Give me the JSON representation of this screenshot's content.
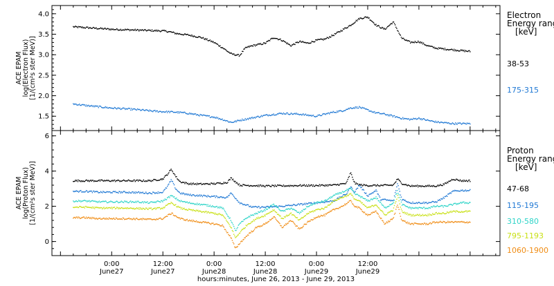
{
  "chart_data": [
    {
      "type": "scatter",
      "panel": "electron",
      "ylabel_lines": [
        "ACE EPAM",
        "log(Electron Flux)",
        "[1/(cm²s ster MeV)]"
      ],
      "ylim": [
        1.15,
        4.2
      ],
      "yticks": [
        1.5,
        2.0,
        2.5,
        3.0,
        3.5,
        4.0
      ],
      "ytick_labels": [
        "1.5",
        "2.0",
        "2.5",
        "3.0",
        "3.5",
        "4.0"
      ],
      "legend_title_lines": [
        "Electron",
        "Energy range",
        "[keV]"
      ],
      "series": [
        {
          "name": "38-53",
          "color": "#000000",
          "x": [
            -9,
            -6,
            -3,
            0,
            3,
            6,
            9,
            12,
            13,
            14,
            15,
            18,
            21,
            24,
            26,
            28,
            29,
            30,
            31,
            31.5,
            33,
            36,
            38,
            40,
            42,
            44,
            46,
            48,
            50,
            52,
            54,
            56,
            58,
            60,
            62,
            64,
            66,
            68,
            70,
            72,
            74,
            76,
            78,
            80,
            82,
            84
          ],
          "y": [
            3.68,
            3.66,
            3.64,
            3.62,
            3.61,
            3.6,
            3.59,
            3.58,
            3.57,
            3.55,
            3.52,
            3.48,
            3.42,
            3.3,
            3.17,
            3.02,
            3.0,
            2.98,
            3.12,
            3.17,
            3.22,
            3.28,
            3.42,
            3.35,
            3.22,
            3.32,
            3.28,
            3.35,
            3.38,
            3.48,
            3.6,
            3.72,
            3.88,
            3.92,
            3.72,
            3.62,
            3.8,
            3.4,
            3.3,
            3.32,
            3.22,
            3.16,
            3.14,
            3.12,
            3.1,
            3.08
          ]
        },
        {
          "name": "175-315",
          "color": "#1f78d4",
          "x": [
            -9,
            -6,
            -3,
            0,
            3,
            6,
            9,
            12,
            15,
            18,
            21,
            24,
            26,
            28,
            29,
            30,
            33,
            36,
            40,
            44,
            48,
            50,
            52,
            54,
            56,
            58,
            60,
            62,
            64,
            66,
            68,
            70,
            72,
            74,
            76,
            78,
            80,
            82,
            84
          ],
          "y": [
            1.8,
            1.76,
            1.73,
            1.7,
            1.68,
            1.66,
            1.63,
            1.61,
            1.6,
            1.57,
            1.52,
            1.48,
            1.42,
            1.35,
            1.37,
            1.4,
            1.46,
            1.52,
            1.57,
            1.55,
            1.5,
            1.55,
            1.6,
            1.63,
            1.7,
            1.72,
            1.65,
            1.58,
            1.55,
            1.5,
            1.45,
            1.42,
            1.45,
            1.4,
            1.36,
            1.34,
            1.32,
            1.32,
            1.32
          ]
        }
      ]
    },
    {
      "type": "scatter",
      "panel": "proton",
      "ylabel_lines": [
        "ACE EPAM",
        "log(Proton Flux)",
        "[1/(cm²s ster MeV)]"
      ],
      "ylim": [
        -0.8,
        6.3
      ],
      "yticks": [
        0,
        2,
        4,
        6
      ],
      "ytick_labels": [
        "0",
        "2",
        "4",
        "6"
      ],
      "legend_title_lines": [
        "Proton",
        "Energy range",
        "[keV]"
      ],
      "series": [
        {
          "name": "47-68",
          "color": "#000000",
          "x": [
            -9,
            -6,
            -3,
            0,
            3,
            6,
            9,
            12,
            13,
            14,
            15,
            16,
            18,
            21,
            24,
            27,
            28,
            30,
            33,
            36,
            40,
            44,
            48,
            52,
            55,
            56,
            57,
            58,
            60,
            63,
            66,
            67,
            68,
            70,
            72,
            74,
            76,
            78,
            80,
            82,
            84
          ],
          "y": [
            3.45,
            3.45,
            3.45,
            3.45,
            3.45,
            3.45,
            3.45,
            3.55,
            3.8,
            4.1,
            3.7,
            3.4,
            3.28,
            3.26,
            3.28,
            3.35,
            3.6,
            3.2,
            3.18,
            3.15,
            3.16,
            3.18,
            3.18,
            3.2,
            3.3,
            3.9,
            3.3,
            3.22,
            3.18,
            3.18,
            3.2,
            3.55,
            3.3,
            3.15,
            3.15,
            3.15,
            3.15,
            3.25,
            3.55,
            3.45,
            3.45
          ]
        },
        {
          "name": "115-195",
          "color": "#1f78d4",
          "x": [
            -9,
            -6,
            -3,
            0,
            3,
            6,
            9,
            12,
            13,
            14,
            15,
            16,
            18,
            21,
            24,
            27,
            28,
            30,
            33,
            36,
            40,
            44,
            48,
            52,
            55,
            56,
            57,
            58,
            60,
            62,
            63,
            66,
            67,
            68,
            70,
            72,
            74,
            76,
            78,
            80,
            82,
            84
          ],
          "y": [
            2.85,
            2.85,
            2.8,
            2.8,
            2.8,
            2.78,
            2.75,
            2.8,
            3.1,
            3.5,
            3.0,
            2.75,
            2.65,
            2.6,
            2.55,
            2.5,
            2.75,
            2.2,
            1.95,
            1.95,
            2.0,
            2.1,
            2.2,
            2.3,
            2.7,
            3.1,
            2.8,
            3.2,
            2.6,
            2.9,
            2.4,
            2.3,
            3.3,
            2.4,
            2.2,
            2.2,
            2.2,
            2.25,
            2.5,
            2.85,
            2.9,
            2.9
          ]
        },
        {
          "name": "310-580",
          "color": "#2ed4c8",
          "x": [
            -9,
            -6,
            -3,
            0,
            3,
            6,
            9,
            12,
            14,
            16,
            18,
            21,
            24,
            26,
            28,
            29,
            30,
            32,
            34,
            36,
            38,
            40,
            42,
            44,
            46,
            48,
            50,
            52,
            54,
            56,
            57,
            58,
            60,
            62,
            64,
            66,
            67,
            68,
            70,
            72,
            74,
            76,
            78,
            80,
            82,
            84
          ],
          "y": [
            2.3,
            2.3,
            2.25,
            2.25,
            2.25,
            2.25,
            2.2,
            2.3,
            2.6,
            2.3,
            2.2,
            2.1,
            2.0,
            1.9,
            1.2,
            0.6,
            1.0,
            1.4,
            1.6,
            1.8,
            2.1,
            1.7,
            1.9,
            1.6,
            2.0,
            2.2,
            2.3,
            2.6,
            2.8,
            3.0,
            2.7,
            2.6,
            2.3,
            2.5,
            1.9,
            2.2,
            2.9,
            2.1,
            1.9,
            1.9,
            1.9,
            2.0,
            2.0,
            2.1,
            2.2,
            2.2
          ]
        },
        {
          "name": "795-1193",
          "color": "#c8e014",
          "x": [
            -9,
            -6,
            -3,
            0,
            3,
            6,
            9,
            12,
            14,
            16,
            18,
            21,
            24,
            26,
            28,
            29,
            30,
            32,
            34,
            36,
            38,
            40,
            42,
            44,
            46,
            48,
            50,
            52,
            54,
            56,
            57,
            58,
            60,
            62,
            64,
            66,
            67,
            68,
            70,
            72,
            74,
            76,
            78,
            80,
            82,
            84
          ],
          "y": [
            1.95,
            1.95,
            1.9,
            1.9,
            1.9,
            1.88,
            1.85,
            1.9,
            2.2,
            1.9,
            1.8,
            1.7,
            1.6,
            1.5,
            0.8,
            0.2,
            0.5,
            1.0,
            1.3,
            1.5,
            1.8,
            1.3,
            1.6,
            1.2,
            1.6,
            1.8,
            1.9,
            2.3,
            2.5,
            2.7,
            2.4,
            2.3,
            1.9,
            2.1,
            1.5,
            1.8,
            2.6,
            1.7,
            1.5,
            1.5,
            1.5,
            1.6,
            1.6,
            1.7,
            1.7,
            1.7
          ]
        },
        {
          "name": "1060-1900",
          "color": "#f08c14",
          "x": [
            -9,
            -6,
            -3,
            0,
            3,
            6,
            9,
            12,
            14,
            16,
            18,
            21,
            24,
            26,
            28,
            29,
            30,
            32,
            34,
            36,
            38,
            40,
            42,
            44,
            46,
            48,
            50,
            52,
            54,
            56,
            57,
            58,
            60,
            62,
            64,
            66,
            67,
            68,
            70,
            72,
            74,
            76,
            78,
            80,
            82,
            84
          ],
          "y": [
            1.35,
            1.35,
            1.3,
            1.3,
            1.3,
            1.28,
            1.25,
            1.3,
            1.6,
            1.3,
            1.2,
            1.1,
            1.0,
            0.9,
            0.2,
            -0.4,
            -0.1,
            0.4,
            0.8,
            1.0,
            1.4,
            0.8,
            1.2,
            0.7,
            1.1,
            1.4,
            1.5,
            1.8,
            2.0,
            2.3,
            2.0,
            1.9,
            1.5,
            1.7,
            1.0,
            1.3,
            2.1,
            1.2,
            1.0,
            1.0,
            1.0,
            1.1,
            1.1,
            1.1,
            1.1,
            1.1
          ]
        }
      ]
    }
  ],
  "axis": {
    "xlim": [
      -14,
      91
    ],
    "xticks": [
      0,
      12,
      24,
      36,
      48,
      60,
      72
    ],
    "xtick_time_labels": [
      "0:00",
      "12:00",
      "0:00",
      "12:00",
      "0:00",
      "12:00"
    ],
    "xtick_date_labels": [
      "June27",
      "June27",
      "June28",
      "June28",
      "June29",
      "June29"
    ],
    "xlabel": "hours:minutes, June 26, 2013 - June 29, 2013"
  },
  "colors": {
    "frame": "#000000",
    "background": "#ffffff"
  }
}
